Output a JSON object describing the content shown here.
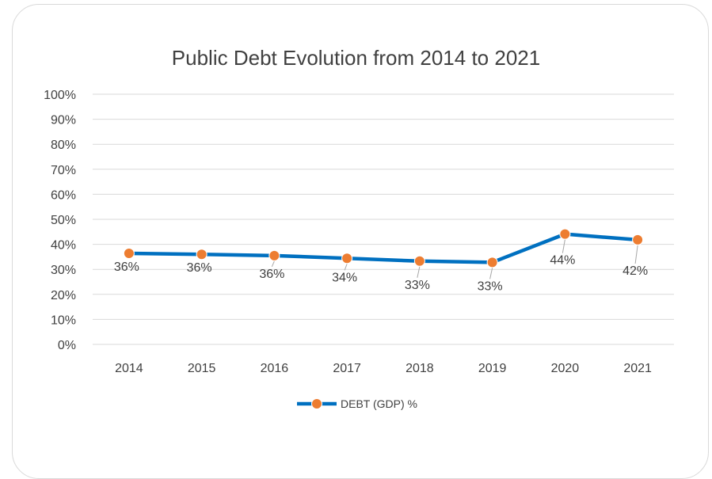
{
  "chart_data": {
    "type": "line",
    "title": "Public Debt Evolution from 2014 to 2021",
    "categories": [
      "2014",
      "2015",
      "2016",
      "2017",
      "2018",
      "2019",
      "2020",
      "2021"
    ],
    "series": [
      {
        "name": "DEBT (GDP) %",
        "values": [
          36.4,
          36.0,
          35.5,
          34.4,
          33.3,
          32.8,
          44.1,
          41.8
        ],
        "data_labels": [
          "36%",
          "36%",
          "36%",
          "34%",
          "33%",
          "33%",
          "44%",
          "42%"
        ]
      }
    ],
    "y_ticks": [
      "0%",
      "10%",
      "20%",
      "30%",
      "40%",
      "50%",
      "60%",
      "70%",
      "80%",
      "90%",
      "100%"
    ],
    "ylim": [
      0,
      100
    ],
    "grid": true,
    "legend_position": "bottom",
    "colors": {
      "line": "#0070c0",
      "marker": "#ed7d31",
      "grid": "#d9d9d9",
      "text": "#404040"
    }
  }
}
